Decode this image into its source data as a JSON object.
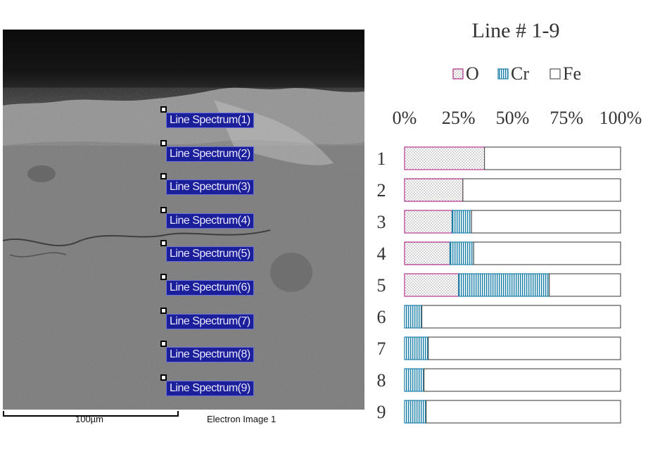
{
  "sem_image": {
    "spectrum_labels": [
      "Line Spectrum(1)",
      "Line Spectrum(2)",
      "Line Spectrum(3)",
      "Line Spectrum(4)",
      "Line Spectrum(5)",
      "Line Spectrum(6)",
      "Line Spectrum(7)",
      "Line Spectrum(8)",
      "Line Spectrum(9)"
    ],
    "scale_label": "100µm",
    "caption": "Electron Image 1",
    "label_color": "#1c1f9a"
  },
  "chart_data": {
    "type": "bar",
    "orientation": "horizontal",
    "stacked": "percent",
    "title": "Line # 1-9",
    "categories": [
      "1",
      "2",
      "3",
      "4",
      "5",
      "6",
      "7",
      "8",
      "9"
    ],
    "series": [
      {
        "name": "O",
        "values": [
          37,
          27,
          22,
          21,
          25,
          0,
          0,
          0,
          0
        ],
        "color": "#b0308a",
        "pattern": "dots"
      },
      {
        "name": "Cr",
        "values": [
          0,
          0,
          9,
          11,
          42,
          8,
          11,
          9,
          10
        ],
        "color": "#1a7fa8",
        "pattern": "vertical-lines"
      },
      {
        "name": "Fe",
        "values": [
          63,
          73,
          69,
          68,
          33,
          92,
          89,
          91,
          90
        ],
        "color": "#555555",
        "pattern": "none"
      }
    ],
    "x_ticks": [
      "0%",
      "25%",
      "50%",
      "75%",
      "100%"
    ],
    "xlim": [
      0,
      100
    ],
    "legend": "top",
    "grid": false
  }
}
